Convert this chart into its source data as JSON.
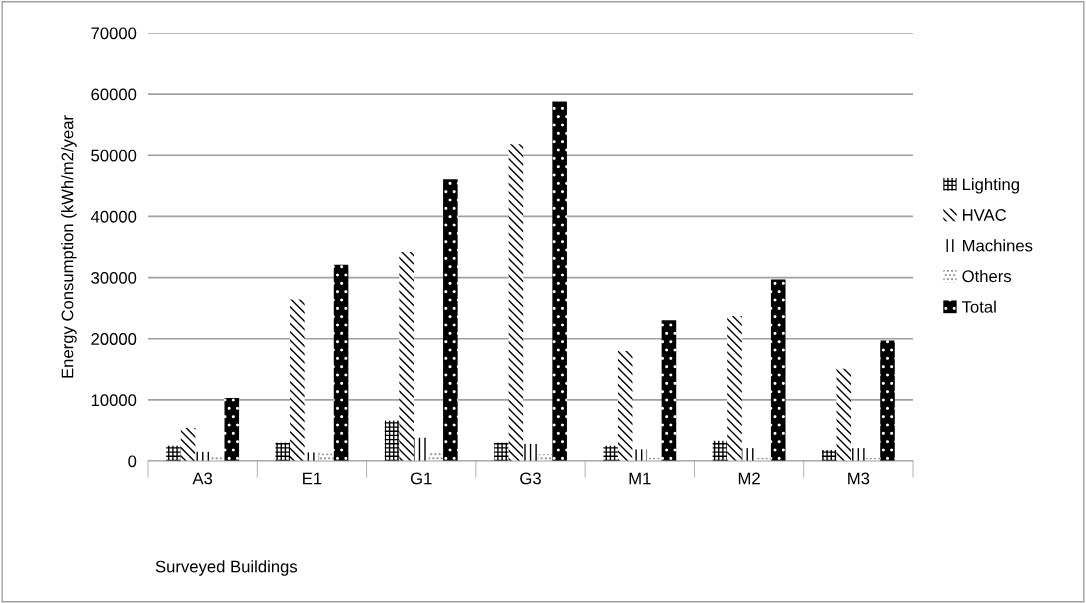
{
  "chart_data": {
    "type": "bar",
    "ylabel": "Energy Consumption (kWh/m2/year",
    "xlabel": "Surveyed Buildings",
    "categories": [
      "A3",
      "E1",
      "G1",
      "G3",
      "M1",
      "M2",
      "M3"
    ],
    "series": [
      {
        "name": "Lighting",
        "color": "#000000",
        "values": [
          2500,
          3000,
          6600,
          3000,
          2500,
          3300,
          1800
        ]
      },
      {
        "name": "HVAC",
        "color": "#000000",
        "values": [
          5400,
          26400,
          34200,
          51800,
          18000,
          23700,
          15100
        ]
      },
      {
        "name": "Machines",
        "color": "#000000",
        "values": [
          1500,
          1400,
          3800,
          2800,
          1900,
          2100,
          2100
        ]
      },
      {
        "name": "Others",
        "color": "#909090",
        "values": [
          700,
          1200,
          1500,
          1100,
          500,
          500,
          500
        ]
      },
      {
        "name": "Total",
        "color": "#000000",
        "values": [
          10300,
          32100,
          46100,
          58800,
          23000,
          29700,
          19700
        ]
      }
    ],
    "ylim": [
      0,
      70000
    ],
    "yticks": [
      0,
      10000,
      20000,
      30000,
      40000,
      50000,
      60000,
      70000
    ],
    "grid": "y",
    "legend": "right"
  }
}
